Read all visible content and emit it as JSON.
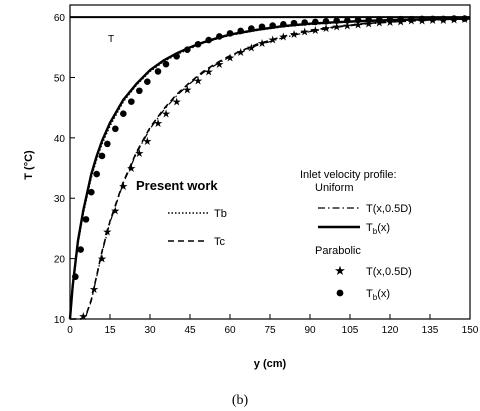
{
  "chart_data": {
    "type": "line",
    "xlabel": "y (cm)",
    "ylabel": "T (°C)",
    "xlim": [
      0,
      150
    ],
    "ylim": [
      10,
      62
    ],
    "x_ticks": [
      0,
      15,
      30,
      45,
      60,
      75,
      90,
      105,
      120,
      135,
      150
    ],
    "y_ticks": [
      10,
      20,
      30,
      40,
      50,
      60
    ],
    "grid": false,
    "wall_label": "Tw",
    "wall_value": 60,
    "caption": "(b)",
    "legend_left": {
      "title": "Present work",
      "tb_label": "Tb",
      "tc_label": "Tc"
    },
    "legend_right": {
      "title_line1": "Inlet velocity profile:",
      "title_line2": "Uniform",
      "uniform_center_label": "T(x,0.5D)",
      "uniform_bulk_label": "Tb(x)",
      "parabolic_title": "Parabolic",
      "parabolic_center_label": "T(x,0.5D)",
      "parabolic_bulk_label": "Tb(x)"
    },
    "series": [
      {
        "style": "dotted",
        "x": [
          0,
          1,
          3,
          5,
          8,
          10,
          12,
          15,
          20,
          25,
          30,
          35,
          40,
          45,
          50,
          55,
          60,
          70,
          80,
          90,
          100,
          110,
          120,
          135,
          150
        ],
        "y": [
          10,
          15,
          22.5,
          27.5,
          33.5,
          36.5,
          39,
          42,
          46,
          48.8,
          51,
          52.6,
          53.8,
          54.8,
          55.7,
          56.4,
          57,
          57.8,
          58.4,
          58.8,
          59.1,
          59.3,
          59.45,
          59.6,
          59.7
        ]
      },
      {
        "style": "dash-dot",
        "x": [
          0,
          4,
          6,
          8,
          10,
          12,
          15,
          20,
          25,
          30,
          35,
          40,
          45,
          50,
          55,
          60,
          70,
          80,
          90,
          100,
          110,
          120,
          135,
          150
        ],
        "y": [
          10,
          10,
          10.5,
          13,
          17,
          21,
          26,
          32.5,
          37.5,
          41.5,
          44.5,
          47,
          49,
          50.8,
          52.2,
          53.4,
          55.3,
          56.6,
          57.6,
          58.3,
          58.8,
          59.15,
          59.5,
          59.7
        ]
      },
      {
        "style": "dashed",
        "x": [
          0,
          4,
          6,
          8,
          10,
          12,
          15,
          20,
          25,
          30,
          35,
          40,
          45,
          50,
          55,
          60,
          70,
          80,
          90,
          100,
          110,
          120,
          135,
          150
        ],
        "y": [
          10,
          10,
          10.6,
          13.2,
          17.2,
          21.2,
          26.2,
          32.7,
          37.7,
          41.7,
          44.7,
          47.2,
          49.2,
          51,
          52.4,
          53.6,
          55.5,
          56.8,
          57.8,
          58.4,
          58.9,
          59.2,
          59.5,
          59.7
        ]
      },
      {
        "style": "solid",
        "x": [
          0,
          1,
          3,
          5,
          8,
          10,
          12,
          15,
          20,
          25,
          30,
          35,
          40,
          45,
          50,
          55,
          60,
          70,
          80,
          90,
          100,
          110,
          120,
          135,
          150
        ],
        "y": [
          10,
          15.5,
          23,
          28,
          34,
          37,
          39.5,
          42.5,
          46.3,
          49,
          51.2,
          52.8,
          54,
          55,
          55.8,
          56.5,
          57.1,
          57.9,
          58.5,
          58.9,
          59.15,
          59.35,
          59.5,
          59.65,
          59.75
        ]
      },
      {
        "style": "stars",
        "x": [
          5,
          9,
          12,
          14,
          17,
          20,
          23,
          26,
          29,
          33,
          36,
          40,
          44,
          48,
          52,
          56,
          60,
          64,
          68,
          72,
          76,
          80,
          84,
          88,
          92,
          96,
          100,
          104,
          108,
          112,
          116,
          120,
          124,
          128,
          132,
          136,
          140,
          144,
          148
        ],
        "y": [
          10.5,
          15,
          20,
          24.5,
          28,
          32,
          35,
          37.5,
          39.5,
          42.5,
          44,
          46,
          48,
          49.5,
          51,
          52.2,
          53.3,
          54.2,
          55,
          55.7,
          56.3,
          56.8,
          57.2,
          57.6,
          57.9,
          58.2,
          58.4,
          58.6,
          58.8,
          58.95,
          59.1,
          59.2,
          59.3,
          59.4,
          59.45,
          59.5,
          59.55,
          59.6,
          59.65
        ]
      },
      {
        "style": "circles",
        "x": [
          2,
          4,
          6,
          8,
          10,
          12,
          14,
          17,
          20,
          23,
          26,
          29,
          33,
          36,
          40,
          44,
          48,
          52,
          56,
          60,
          64,
          68,
          72,
          76,
          80,
          84,
          88,
          92,
          96,
          100,
          104,
          108,
          112,
          116,
          120,
          124,
          128,
          132,
          136,
          140,
          144,
          148
        ],
        "y": [
          17,
          21.5,
          26.5,
          31,
          34,
          37,
          39,
          41.5,
          44,
          46,
          47.8,
          49.3,
          51,
          52.2,
          53.5,
          54.6,
          55.5,
          56.2,
          56.8,
          57.3,
          57.7,
          58.1,
          58.4,
          58.6,
          58.8,
          59,
          59.1,
          59.2,
          59.3,
          59.4,
          59.45,
          59.5,
          59.55,
          59.6,
          59.6,
          59.65,
          59.65,
          59.7,
          59.7,
          59.7,
          59.75,
          59.75
        ]
      }
    ]
  }
}
